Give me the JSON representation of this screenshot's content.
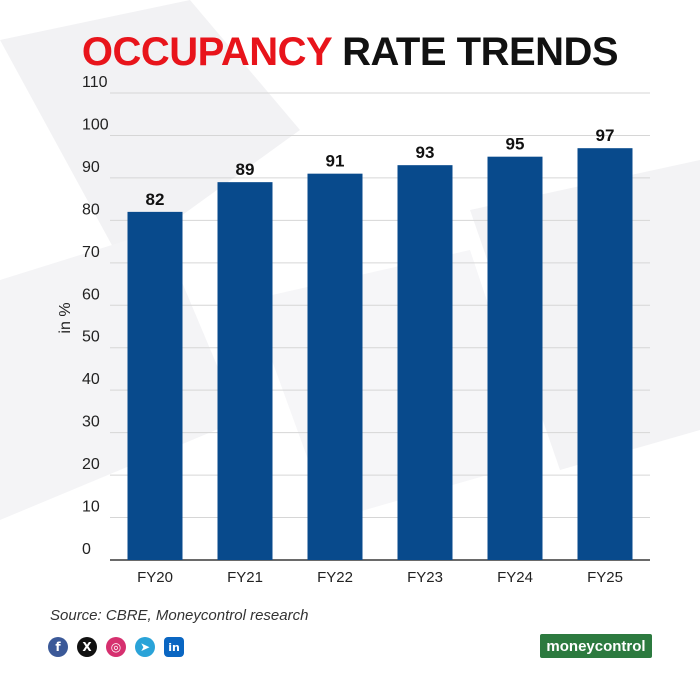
{
  "title": {
    "accent": "OCCUPANCY",
    "rest": "RATE TRENDS"
  },
  "source": "Source: CBRE, Moneycontrol research",
  "brand": "moneycontrol",
  "social": [
    {
      "icon": "facebook-icon",
      "glyph": "f",
      "color": "#3b5998"
    },
    {
      "icon": "x-icon",
      "glyph": "X",
      "color": "#111111"
    },
    {
      "icon": "instagram-icon",
      "glyph": "◎",
      "color": "#d6306f"
    },
    {
      "icon": "telegram-icon",
      "glyph": "➤",
      "color": "#2aa3d8"
    },
    {
      "icon": "linkedin-icon",
      "glyph": "in",
      "color": "#0a66c2"
    }
  ],
  "chart_data": {
    "type": "bar",
    "categories": [
      "FY20",
      "FY21",
      "FY22",
      "FY23",
      "FY24",
      "FY25"
    ],
    "values": [
      82,
      89,
      91,
      93,
      95,
      97
    ],
    "data_labels": [
      "82",
      "89",
      "91",
      "93",
      "95",
      "97"
    ],
    "title": "OCCUPANCY RATE TRENDS",
    "xlabel": "",
    "ylabel": "in %",
    "ylim": [
      0,
      110
    ],
    "yticks": [
      0,
      10,
      20,
      30,
      40,
      50,
      60,
      70,
      80,
      90,
      100,
      110
    ],
    "grid": true,
    "bar_color": "#084a8c"
  }
}
